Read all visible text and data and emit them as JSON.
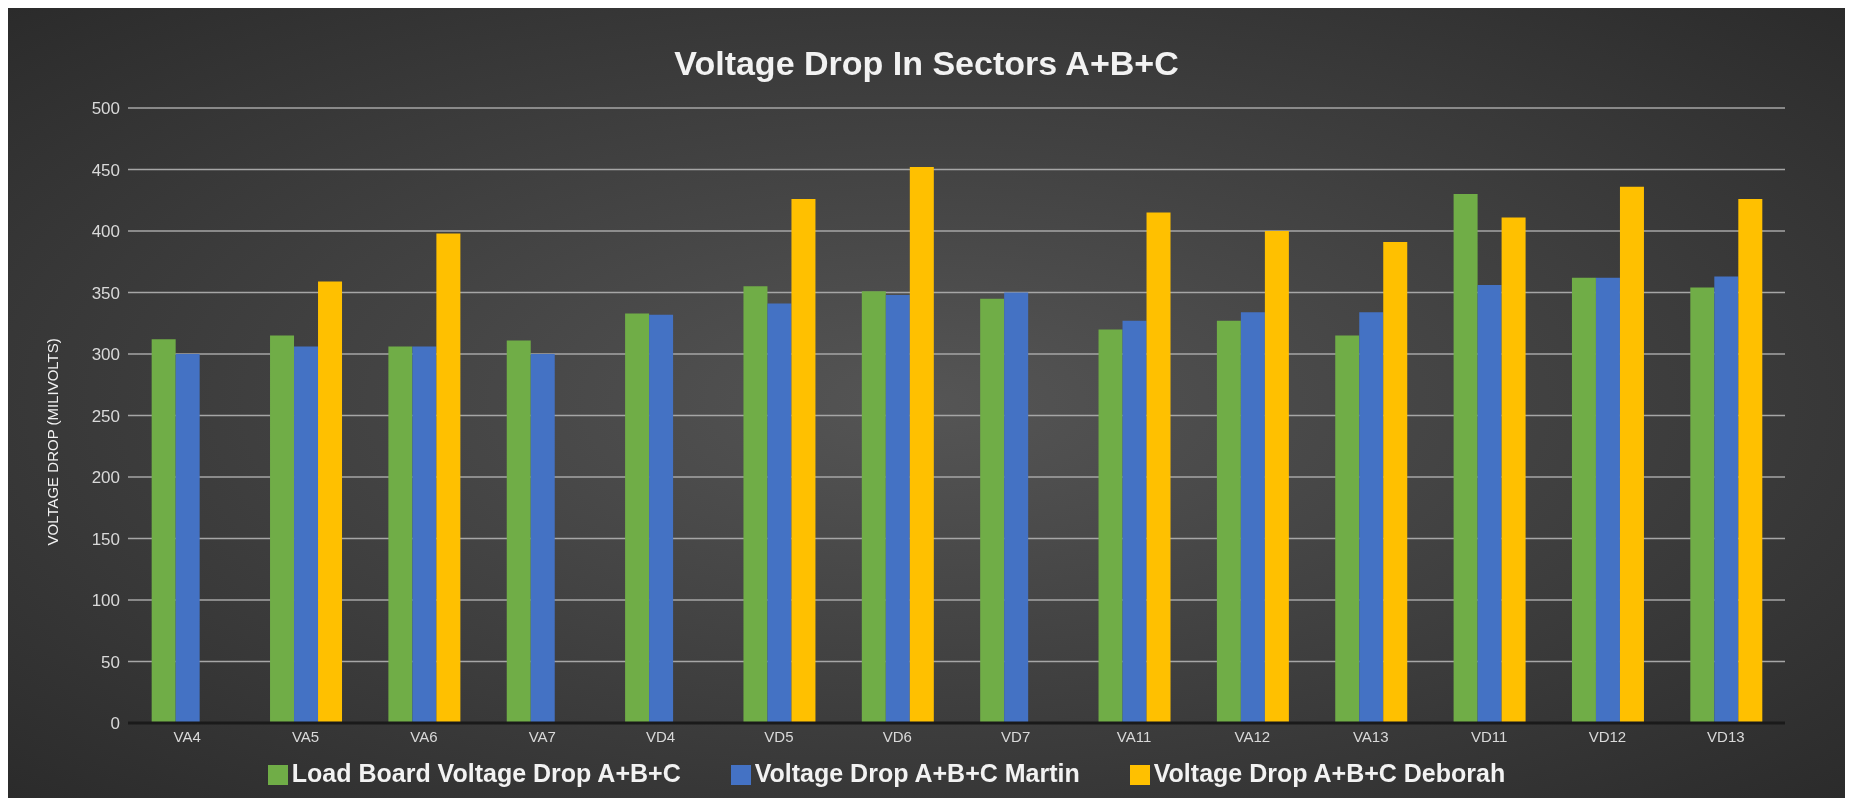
{
  "chart_data": {
    "type": "bar",
    "title": "Voltage Drop In Sectors A+B+C",
    "ylabel": "VOLTAGE DROP (MILIVOLTS)",
    "categories": [
      "VA4",
      "VA5",
      "VA6",
      "VA7",
      "VD4",
      "VD5",
      "VD6",
      "VD7",
      "VA11",
      "VA12",
      "VA13",
      "VD11",
      "VD12",
      "VD13"
    ],
    "series": [
      {
        "name": "Load Board Voltage Drop A+B+C",
        "color": "#70ad47",
        "values": [
          312,
          315,
          306,
          311,
          333,
          355,
          351,
          345,
          320,
          327,
          315,
          430,
          362,
          354
        ]
      },
      {
        "name": "Voltage Drop A+B+C Martin",
        "color": "#4472c4",
        "values": [
          300,
          306,
          306,
          300,
          332,
          341,
          348,
          350,
          327,
          334,
          334,
          356,
          362,
          363
        ]
      },
      {
        "name": "Voltage Drop A+B+C Deborah",
        "color": "#ffc000",
        "values": [
          null,
          359,
          398,
          null,
          null,
          426,
          452,
          null,
          415,
          400,
          391,
          411,
          436,
          426
        ]
      }
    ],
    "ylim": [
      0,
      500
    ],
    "yticks": [
      0,
      50,
      100,
      150,
      200,
      250,
      300,
      350,
      400,
      450,
      500
    ],
    "grid": "y",
    "legend": "bottom"
  }
}
